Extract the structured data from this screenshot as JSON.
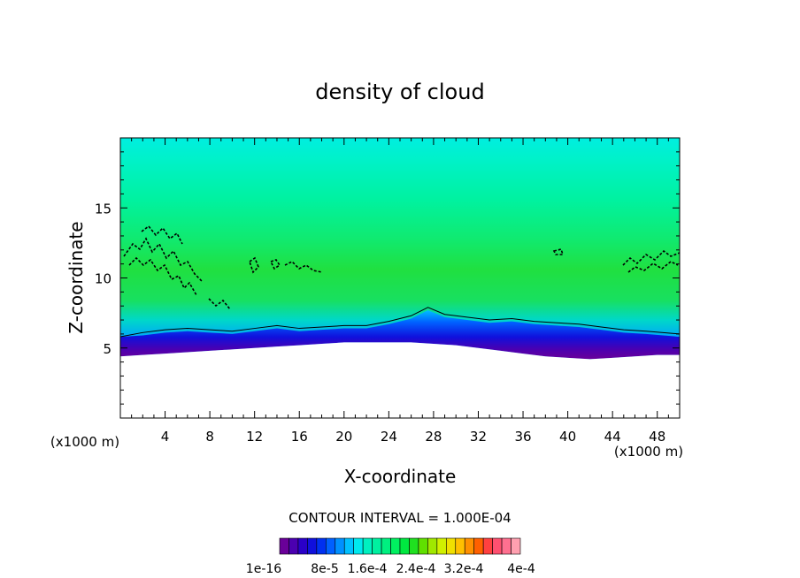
{
  "chart_data": {
    "type": "heatmap",
    "title": "density of cloud",
    "xlabel": "X-coordinate",
    "ylabel": "Z-coordinate",
    "x_unit_left": "(x1000 m)",
    "x_unit_right": "(x1000 m)",
    "xlim": [
      0,
      50
    ],
    "ylim": [
      0,
      20
    ],
    "x_ticks": [
      4,
      8,
      12,
      16,
      20,
      24,
      28,
      32,
      36,
      40,
      44,
      48
    ],
    "y_ticks": [
      5,
      10,
      15
    ],
    "contour_interval_text": "CONTOUR INTERVAL = 1.000E-04",
    "colorbar": {
      "labels": [
        "1e-16",
        "8e-5",
        "1.6e-4",
        "2.4e-4",
        "3.2e-4",
        "4e-4"
      ],
      "colors": [
        "#6a0099",
        "#4b00b0",
        "#2a00c8",
        "#1010dc",
        "#0030f0",
        "#0060ff",
        "#0090ff",
        "#00c0ff",
        "#00e8ee",
        "#00f0c0",
        "#00f0a0",
        "#00f080",
        "#00f060",
        "#00e840",
        "#20e020",
        "#60e000",
        "#a0e800",
        "#d0f000",
        "#f0e000",
        "#ffc000",
        "#ff9000",
        "#ff6000",
        "#ff4040",
        "#ff5070",
        "#ff7090",
        "#ffa0b0"
      ]
    },
    "cloud_base": {
      "x": [
        0,
        2,
        4,
        6,
        8,
        10,
        12,
        14,
        16,
        18,
        20,
        22,
        24,
        26,
        28,
        30,
        32,
        34,
        36,
        38,
        40,
        42,
        44,
        46,
        48,
        50
      ],
      "z": [
        4.4,
        4.5,
        4.6,
        4.7,
        4.8,
        4.9,
        5.0,
        5.1,
        5.2,
        5.3,
        5.4,
        5.4,
        5.4,
        5.4,
        5.3,
        5.2,
        5.0,
        4.8,
        4.6,
        4.4,
        4.3,
        4.2,
        4.3,
        4.4,
        4.5,
        4.5
      ]
    },
    "contour_7e-5": {
      "x": [
        0,
        2,
        4,
        6,
        8,
        10,
        12,
        14,
        16,
        18,
        20,
        22,
        24,
        26,
        27.5,
        29,
        31,
        33,
        35,
        37,
        39,
        41,
        43,
        45,
        47,
        50
      ],
      "z": [
        5.8,
        6.1,
        6.3,
        6.4,
        6.3,
        6.2,
        6.4,
        6.6,
        6.4,
        6.5,
        6.6,
        6.6,
        6.9,
        7.3,
        7.9,
        7.4,
        7.2,
        7.0,
        7.1,
        6.9,
        6.8,
        6.7,
        6.5,
        6.3,
        6.2,
        6.0
      ]
    }
  }
}
